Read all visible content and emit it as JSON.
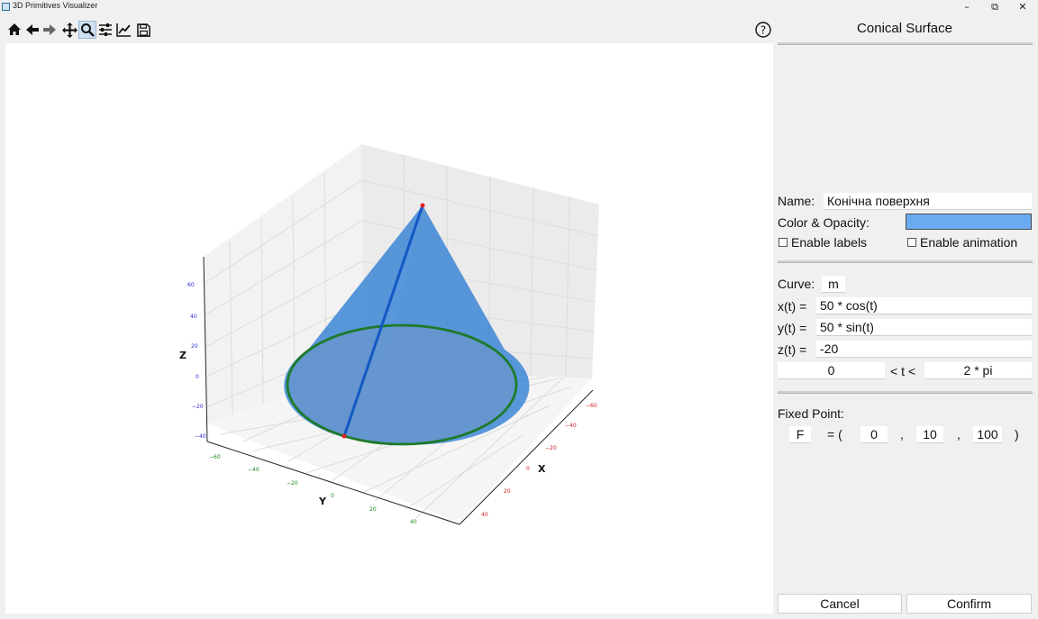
{
  "window": {
    "title": "3D Primitives Visualizer",
    "minimize": "–",
    "maximize": "⧉",
    "close": "✕"
  },
  "toolbar": {
    "items": [
      {
        "icon": "home-icon"
      },
      {
        "icon": "back-arrow-icon"
      },
      {
        "icon": "forward-arrow-icon"
      },
      {
        "icon": "pan-icon"
      },
      {
        "icon": "zoom-icon",
        "active": true
      },
      {
        "icon": "configure-subplots-icon"
      },
      {
        "icon": "edit-axis-icon"
      },
      {
        "icon": "save-icon"
      }
    ],
    "help": "?"
  },
  "plot": {
    "z_label": "Z",
    "x_label": "X",
    "y_label": "Y",
    "z_ticks": [
      "60",
      "40",
      "20",
      "0",
      "−20",
      "−40"
    ],
    "x_ticks": [
      "−60",
      "−40",
      "−20",
      "0",
      "20",
      "40"
    ],
    "y_ticks": [
      "−60",
      "−40",
      "−20",
      "0",
      "20",
      "40"
    ],
    "colors": {
      "cone": "#3d86d6",
      "curve": "#1e7a2a",
      "generatrix": "#1358c4",
      "point": "#e02020",
      "x_tick": "#d02020",
      "y_tick": "#1e8a1e",
      "z_tick": "#2a2ad0"
    }
  },
  "panel": {
    "title": "Conical Surface",
    "name_label": "Name:",
    "name_value": "Конічна поверхня",
    "color_label": "Color & Opacity:",
    "color_value": "#6aaaf0",
    "enable_labels": "Enable labels",
    "enable_animation": "Enable animation",
    "curve_label": "Curve:",
    "curve_name": "m",
    "xt_label": "x(t) =",
    "xt_value": "50 * cos(t)",
    "yt_label": "y(t) =",
    "yt_value": "50 * sin(t)",
    "zt_label": "z(t) =",
    "zt_value": "-20",
    "t_min": "0",
    "t_mid": "< t <",
    "t_max": "2 * pi",
    "fixed_point_label": "Fixed Point:",
    "point_name": "F",
    "eq_open": "= (",
    "comma1": ",",
    "comma2": ",",
    "close_paren": ")",
    "fx": "0",
    "fy": "10",
    "fz": "100",
    "cancel": "Cancel",
    "confirm": "Confirm"
  }
}
